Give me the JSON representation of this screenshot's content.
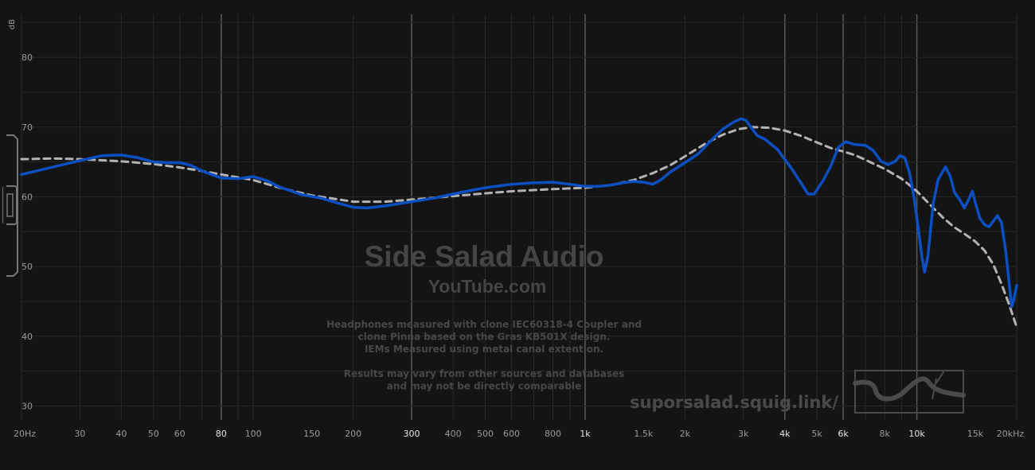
{
  "chart_data": {
    "type": "line",
    "x_scale": "log",
    "xlim": [
      20,
      20000
    ],
    "ylim": [
      28,
      88
    ],
    "ylabel": "dB",
    "y_ticks": [
      30,
      40,
      50,
      60,
      70,
      80
    ],
    "x_ticks": [
      {
        "value": 20,
        "label": "20Hz",
        "major": false
      },
      {
        "value": 30,
        "label": "30",
        "major": false
      },
      {
        "value": 40,
        "label": "40",
        "major": false
      },
      {
        "value": 50,
        "label": "50",
        "major": false
      },
      {
        "value": 60,
        "label": "60",
        "major": false
      },
      {
        "value": 80,
        "label": "80",
        "major": true
      },
      {
        "value": 100,
        "label": "100",
        "major": false
      },
      {
        "value": 150,
        "label": "150",
        "major": false
      },
      {
        "value": 200,
        "label": "200",
        "major": false
      },
      {
        "value": 300,
        "label": "300",
        "major": true
      },
      {
        "value": 400,
        "label": "400",
        "major": false
      },
      {
        "value": 500,
        "label": "500",
        "major": false
      },
      {
        "value": 600,
        "label": "600",
        "major": false
      },
      {
        "value": 800,
        "label": "800",
        "major": false
      },
      {
        "value": 1000,
        "label": "1k",
        "major": true
      },
      {
        "value": 1500,
        "label": "1.5k",
        "major": false
      },
      {
        "value": 2000,
        "label": "2k",
        "major": false
      },
      {
        "value": 3000,
        "label": "3k",
        "major": false
      },
      {
        "value": 4000,
        "label": "4k",
        "major": true
      },
      {
        "value": 5000,
        "label": "5k",
        "major": false
      },
      {
        "value": 6000,
        "label": "6k",
        "major": true
      },
      {
        "value": 8000,
        "label": "8k",
        "major": false
      },
      {
        "value": 10000,
        "label": "10k",
        "major": true
      },
      {
        "value": 15000,
        "label": "15k",
        "major": false
      },
      {
        "value": 20000,
        "label": "20kHz",
        "major": false
      }
    ],
    "grid": true,
    "series": [
      {
        "color": "#0b4fc2",
        "style": "solid",
        "points": [
          [
            20,
            63.2
          ],
          [
            25,
            64.3
          ],
          [
            30,
            65.2
          ],
          [
            35,
            65.9
          ],
          [
            40,
            66.0
          ],
          [
            45,
            65.6
          ],
          [
            50,
            65.0
          ],
          [
            55,
            64.9
          ],
          [
            60,
            64.9
          ],
          [
            65,
            64.5
          ],
          [
            70,
            63.7
          ],
          [
            80,
            62.7
          ],
          [
            90,
            62.6
          ],
          [
            100,
            62.9
          ],
          [
            110,
            62.3
          ],
          [
            120,
            61.4
          ],
          [
            140,
            60.3
          ],
          [
            160,
            59.8
          ],
          [
            180,
            59.1
          ],
          [
            200,
            58.5
          ],
          [
            220,
            58.4
          ],
          [
            250,
            58.7
          ],
          [
            300,
            59.3
          ],
          [
            350,
            59.8
          ],
          [
            400,
            60.4
          ],
          [
            450,
            60.9
          ],
          [
            500,
            61.3
          ],
          [
            600,
            61.8
          ],
          [
            700,
            62.0
          ],
          [
            800,
            62.1
          ],
          [
            900,
            61.8
          ],
          [
            1000,
            61.5
          ],
          [
            1100,
            61.5
          ],
          [
            1200,
            61.7
          ],
          [
            1300,
            62.0
          ],
          [
            1400,
            62.2
          ],
          [
            1500,
            62.1
          ],
          [
            1600,
            61.8
          ],
          [
            1700,
            62.5
          ],
          [
            1800,
            63.5
          ],
          [
            2000,
            64.9
          ],
          [
            2200,
            66.2
          ],
          [
            2400,
            68.1
          ],
          [
            2600,
            69.7
          ],
          [
            2800,
            70.7
          ],
          [
            2950,
            71.2
          ],
          [
            3050,
            71.0
          ],
          [
            3150,
            70.1
          ],
          [
            3300,
            68.8
          ],
          [
            3500,
            68.2
          ],
          [
            3800,
            66.8
          ],
          [
            4200,
            64.0
          ],
          [
            4500,
            61.8
          ],
          [
            4700,
            60.4
          ],
          [
            4900,
            60.4
          ],
          [
            5200,
            62.2
          ],
          [
            5500,
            64.4
          ],
          [
            5800,
            67.1
          ],
          [
            6100,
            67.9
          ],
          [
            6500,
            67.5
          ],
          [
            7000,
            67.4
          ],
          [
            7400,
            66.6
          ],
          [
            7800,
            65.1
          ],
          [
            8200,
            64.6
          ],
          [
            8600,
            65.1
          ],
          [
            8900,
            65.9
          ],
          [
            9200,
            65.6
          ],
          [
            9500,
            63.5
          ],
          [
            9800,
            60.0
          ],
          [
            10100,
            55.5
          ],
          [
            10350,
            51.5
          ],
          [
            10550,
            49.2
          ],
          [
            10800,
            51.5
          ],
          [
            11200,
            59.0
          ],
          [
            11600,
            62.5
          ],
          [
            12200,
            64.3
          ],
          [
            12600,
            63.0
          ],
          [
            13000,
            60.6
          ],
          [
            13500,
            59.5
          ],
          [
            13900,
            58.4
          ],
          [
            14300,
            59.5
          ],
          [
            14700,
            60.8
          ],
          [
            15000,
            59.2
          ],
          [
            15500,
            56.9
          ],
          [
            16000,
            56.0
          ],
          [
            16500,
            55.7
          ],
          [
            17000,
            56.5
          ],
          [
            17500,
            57.3
          ],
          [
            18000,
            56.3
          ],
          [
            18500,
            52.5
          ],
          [
            19000,
            47.5
          ],
          [
            19300,
            44.2
          ],
          [
            19600,
            45.2
          ],
          [
            20000,
            47.3
          ]
        ]
      },
      {
        "color": "#b3b3b3",
        "style": "dashed",
        "points": [
          [
            20,
            65.4
          ],
          [
            25,
            65.5
          ],
          [
            30,
            65.4
          ],
          [
            40,
            65.1
          ],
          [
            50,
            64.7
          ],
          [
            60,
            64.2
          ],
          [
            70,
            63.7
          ],
          [
            80,
            63.2
          ],
          [
            100,
            62.4
          ],
          [
            120,
            61.3
          ],
          [
            150,
            60.2
          ],
          [
            200,
            59.3
          ],
          [
            250,
            59.3
          ],
          [
            300,
            59.6
          ],
          [
            400,
            60.1
          ],
          [
            500,
            60.5
          ],
          [
            600,
            60.8
          ],
          [
            800,
            61.1
          ],
          [
            1000,
            61.3
          ],
          [
            1200,
            61.7
          ],
          [
            1400,
            62.4
          ],
          [
            1600,
            63.4
          ],
          [
            1800,
            64.5
          ],
          [
            2000,
            65.8
          ],
          [
            2300,
            67.6
          ],
          [
            2600,
            68.9
          ],
          [
            2900,
            69.7
          ],
          [
            3200,
            70.0
          ],
          [
            3600,
            69.9
          ],
          [
            4000,
            69.5
          ],
          [
            4500,
            68.7
          ],
          [
            5000,
            67.8
          ],
          [
            5500,
            67.0
          ],
          [
            6000,
            66.5
          ],
          [
            6500,
            66.0
          ],
          [
            7000,
            65.3
          ],
          [
            8000,
            64.0
          ],
          [
            9000,
            62.6
          ],
          [
            10000,
            60.8
          ],
          [
            11000,
            58.8
          ],
          [
            12000,
            57.0
          ],
          [
            13000,
            55.6
          ],
          [
            14000,
            54.6
          ],
          [
            15000,
            53.6
          ],
          [
            16000,
            52.3
          ],
          [
            17000,
            50.3
          ],
          [
            18000,
            47.5
          ],
          [
            19000,
            44.5
          ],
          [
            20000,
            41.3
          ]
        ]
      }
    ]
  },
  "watermark": {
    "title": "Side Salad Audio",
    "subtitle": "YouTube.com",
    "notes": [
      "Headphones measured with clone IEC60318-4 Coupler and",
      "clone Pinna based on the Gras KB501X design.",
      "IEMs Measured using metal canal extention.",
      "",
      "Results may vary from other sources and databases",
      "and may not be directly comparable"
    ],
    "link": "suporsalad.squig.link/"
  }
}
